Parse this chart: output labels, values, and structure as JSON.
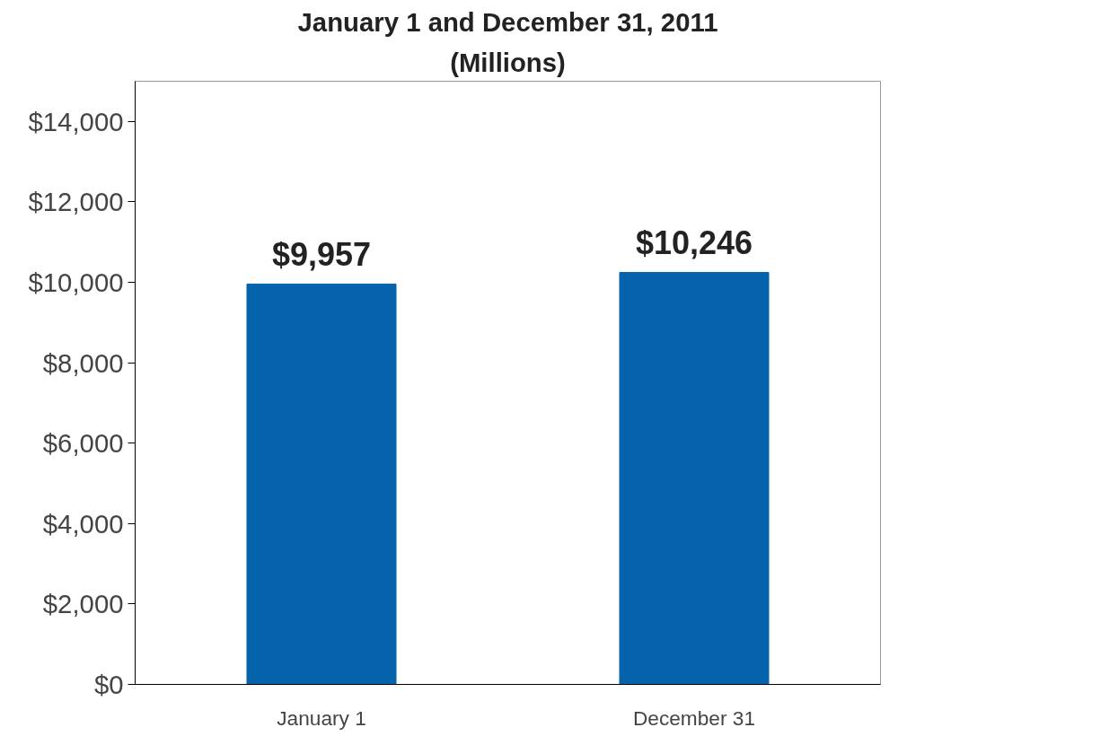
{
  "chart_data": {
    "type": "bar",
    "title": "January 1 and December 31, 2011",
    "subtitle": "(Millions)",
    "categories": [
      "January 1",
      "December 31"
    ],
    "values": [
      9957,
      10246
    ],
    "color": "#0563ab",
    "value_labels": [
      "$9,957",
      "$10,246"
    ],
    "ylim": [
      0,
      15000
    ],
    "yticks": [
      {
        "value": 0,
        "label": "$0"
      },
      {
        "value": 2000,
        "label": "$2,000"
      },
      {
        "value": 4000,
        "label": "$4,000"
      },
      {
        "value": 6000,
        "label": "$6,000"
      },
      {
        "value": 8000,
        "label": "$8,000"
      },
      {
        "value": 10000,
        "label": "$10,000"
      },
      {
        "value": 12000,
        "label": "$12,000"
      },
      {
        "value": 14000,
        "label": "$14,000"
      }
    ],
    "grid": false
  }
}
